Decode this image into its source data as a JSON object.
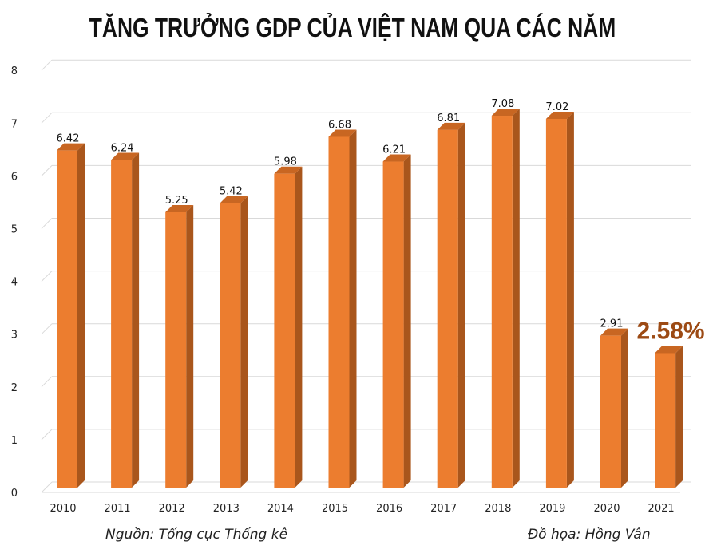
{
  "title": "TĂNG TRƯỞNG GDP CỦA VIỆT NAM QUA CÁC NĂM",
  "footer": {
    "source": "Nguồn: Tổng cục Thống kê",
    "credit": "Đồ họa: Hồng Vân"
  },
  "colors": {
    "bar_front": "#ec7d2f",
    "bar_side": "#a9561c",
    "bar_top": "#c86622",
    "grid": "#d9d9d9",
    "highlight_label": "#9c4a14"
  },
  "chart_data": {
    "type": "bar",
    "categories": [
      "2010",
      "2011",
      "2012",
      "2013",
      "2014",
      "2015",
      "2016",
      "2017",
      "2018",
      "2019",
      "2020",
      "2021"
    ],
    "values": [
      6.42,
      6.24,
      5.25,
      5.42,
      5.98,
      6.68,
      6.21,
      6.81,
      7.08,
      7.02,
      2.91,
      2.58
    ],
    "data_labels": [
      "6.42",
      "6.24",
      "5.25",
      "5.42",
      "5.98",
      "6.68",
      "6.21",
      "6.81",
      "7.08",
      "7.02",
      "2.91",
      "2.58%"
    ],
    "highlight_index": 11,
    "title": "TĂNG TRƯỞNG GDP CỦA VIỆT NAM QUA CÁC NĂM",
    "ylim": [
      0,
      8
    ],
    "yticks": [
      "0",
      "1",
      "2",
      "3",
      "4",
      "5",
      "6",
      "7",
      "8"
    ],
    "grid": true,
    "style": "3d-bar"
  }
}
